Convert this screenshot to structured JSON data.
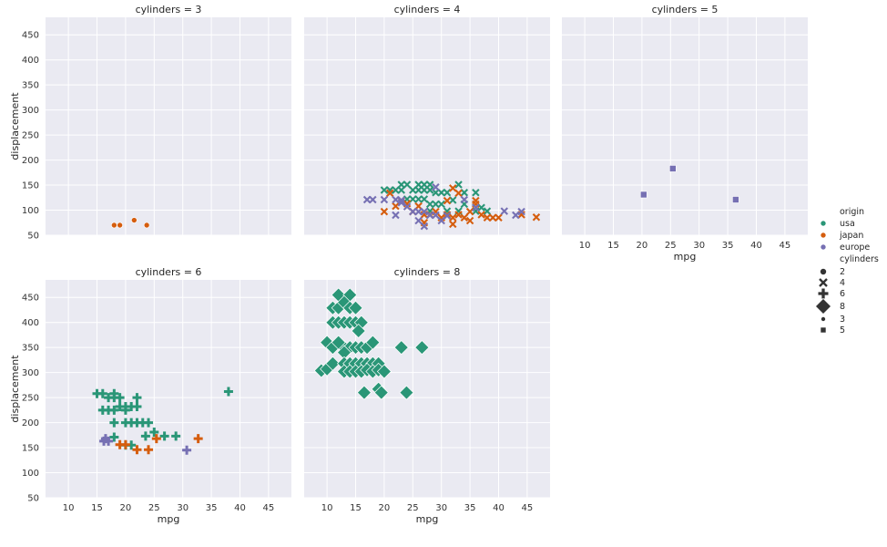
{
  "chart_data": {
    "type": "scatter",
    "facet_label_prefix": "cylinders = ",
    "xlabel": "mpg",
    "ylabel": "displacement",
    "xlim": [
      6,
      49
    ],
    "ylim": [
      50,
      485
    ],
    "xticks": [
      10,
      15,
      20,
      25,
      30,
      35,
      40,
      45
    ],
    "yticks": [
      50,
      100,
      150,
      200,
      250,
      300,
      350,
      400,
      450
    ],
    "grid": true,
    "legend_placement": "right",
    "colors": {
      "usa": "#2a9677",
      "japan": "#d55d0e",
      "europe": "#7670b3"
    },
    "legend": {
      "hue_title": "origin",
      "hue_entries": [
        "usa",
        "japan",
        "europe"
      ],
      "size_style_title": "cylinders",
      "size_style_entries": [
        {
          "label": "2",
          "marker": "circle",
          "size": 7
        },
        {
          "label": "4",
          "marker": "x",
          "size": 8
        },
        {
          "label": "6",
          "marker": "plus",
          "size": 11
        },
        {
          "label": "8",
          "marker": "diamond",
          "size": 17
        },
        {
          "label": "3",
          "marker": "circle",
          "size": 5
        },
        {
          "label": "5",
          "marker": "square",
          "size": 6
        }
      ]
    },
    "panels": [
      {
        "cylinders": "3",
        "marker": "circle",
        "size": 6,
        "show_xaxis": false,
        "points": [
          {
            "origin": "japan",
            "x": 18.0,
            "y": 70
          },
          {
            "origin": "japan",
            "x": 19.0,
            "y": 70
          },
          {
            "origin": "japan",
            "x": 21.5,
            "y": 80
          },
          {
            "origin": "japan",
            "x": 23.7,
            "y": 70
          }
        ]
      },
      {
        "cylinders": "4",
        "marker": "x",
        "size": 7,
        "show_xaxis": false,
        "points": [
          {
            "origin": "usa",
            "x": 20,
            "y": 140
          },
          {
            "origin": "usa",
            "x": 21,
            "y": 140
          },
          {
            "origin": "usa",
            "x": 22,
            "y": 140
          },
          {
            "origin": "usa",
            "x": 23,
            "y": 140
          },
          {
            "origin": "usa",
            "x": 23,
            "y": 151
          },
          {
            "origin": "usa",
            "x": 24,
            "y": 151
          },
          {
            "origin": "usa",
            "x": 25,
            "y": 140
          },
          {
            "origin": "usa",
            "x": 26,
            "y": 151
          },
          {
            "origin": "usa",
            "x": 27,
            "y": 151
          },
          {
            "origin": "usa",
            "x": 28,
            "y": 151
          },
          {
            "origin": "usa",
            "x": 26,
            "y": 140
          },
          {
            "origin": "usa",
            "x": 27,
            "y": 140
          },
          {
            "origin": "usa",
            "x": 28,
            "y": 140
          },
          {
            "origin": "usa",
            "x": 29,
            "y": 135
          },
          {
            "origin": "usa",
            "x": 30,
            "y": 135
          },
          {
            "origin": "usa",
            "x": 31,
            "y": 135
          },
          {
            "origin": "usa",
            "x": 33,
            "y": 151
          },
          {
            "origin": "usa",
            "x": 34,
            "y": 135
          },
          {
            "origin": "usa",
            "x": 36,
            "y": 135
          },
          {
            "origin": "usa",
            "x": 32,
            "y": 120
          },
          {
            "origin": "usa",
            "x": 34,
            "y": 112
          },
          {
            "origin": "usa",
            "x": 36,
            "y": 105
          },
          {
            "origin": "usa",
            "x": 37,
            "y": 105
          },
          {
            "origin": "usa",
            "x": 38,
            "y": 98
          },
          {
            "origin": "usa",
            "x": 26,
            "y": 122
          },
          {
            "origin": "usa",
            "x": 27,
            "y": 122
          },
          {
            "origin": "usa",
            "x": 28,
            "y": 112
          },
          {
            "origin": "usa",
            "x": 29,
            "y": 112
          },
          {
            "origin": "usa",
            "x": 30,
            "y": 112
          },
          {
            "origin": "usa",
            "x": 24,
            "y": 122
          },
          {
            "origin": "usa",
            "x": 25,
            "y": 122
          },
          {
            "origin": "usa",
            "x": 31,
            "y": 98
          },
          {
            "origin": "usa",
            "x": 33,
            "y": 98
          },
          {
            "origin": "usa",
            "x": 36,
            "y": 98
          },
          {
            "origin": "usa",
            "x": 28,
            "y": 98
          },
          {
            "origin": "japan",
            "x": 20,
            "y": 97
          },
          {
            "origin": "japan",
            "x": 21,
            "y": 134
          },
          {
            "origin": "japan",
            "x": 22,
            "y": 108
          },
          {
            "origin": "japan",
            "x": 23,
            "y": 119
          },
          {
            "origin": "japan",
            "x": 24,
            "y": 113
          },
          {
            "origin": "japan",
            "x": 25,
            "y": 97
          },
          {
            "origin": "japan",
            "x": 26,
            "y": 108
          },
          {
            "origin": "japan",
            "x": 27,
            "y": 91
          },
          {
            "origin": "japan",
            "x": 28,
            "y": 91
          },
          {
            "origin": "japan",
            "x": 29,
            "y": 97
          },
          {
            "origin": "japan",
            "x": 30,
            "y": 85
          },
          {
            "origin": "japan",
            "x": 31,
            "y": 91
          },
          {
            "origin": "japan",
            "x": 32,
            "y": 85
          },
          {
            "origin": "japan",
            "x": 32,
            "y": 144
          },
          {
            "origin": "japan",
            "x": 33,
            "y": 91
          },
          {
            "origin": "japan",
            "x": 34,
            "y": 85
          },
          {
            "origin": "japan",
            "x": 35,
            "y": 97
          },
          {
            "origin": "japan",
            "x": 36,
            "y": 119
          },
          {
            "origin": "japan",
            "x": 37,
            "y": 91
          },
          {
            "origin": "japan",
            "x": 38,
            "y": 85
          },
          {
            "origin": "japan",
            "x": 39,
            "y": 85
          },
          {
            "origin": "japan",
            "x": 40,
            "y": 85
          },
          {
            "origin": "japan",
            "x": 44,
            "y": 91
          },
          {
            "origin": "japan",
            "x": 46.6,
            "y": 86
          },
          {
            "origin": "japan",
            "x": 27,
            "y": 75
          },
          {
            "origin": "japan",
            "x": 32,
            "y": 72
          },
          {
            "origin": "japan",
            "x": 35,
            "y": 79
          },
          {
            "origin": "japan",
            "x": 31,
            "y": 119
          },
          {
            "origin": "japan",
            "x": 33,
            "y": 134
          },
          {
            "origin": "japan",
            "x": 36,
            "y": 112
          },
          {
            "origin": "europe",
            "x": 17,
            "y": 121
          },
          {
            "origin": "europe",
            "x": 18,
            "y": 121
          },
          {
            "origin": "europe",
            "x": 20,
            "y": 121
          },
          {
            "origin": "europe",
            "x": 22,
            "y": 121
          },
          {
            "origin": "europe",
            "x": 23,
            "y": 120
          },
          {
            "origin": "europe",
            "x": 24,
            "y": 107
          },
          {
            "origin": "europe",
            "x": 25,
            "y": 97
          },
          {
            "origin": "europe",
            "x": 26,
            "y": 97
          },
          {
            "origin": "europe",
            "x": 27,
            "y": 97
          },
          {
            "origin": "europe",
            "x": 28,
            "y": 90
          },
          {
            "origin": "europe",
            "x": 29,
            "y": 90
          },
          {
            "origin": "europe",
            "x": 30,
            "y": 79
          },
          {
            "origin": "europe",
            "x": 31,
            "y": 89
          },
          {
            "origin": "europe",
            "x": 34,
            "y": 121
          },
          {
            "origin": "europe",
            "x": 36,
            "y": 105
          },
          {
            "origin": "europe",
            "x": 41,
            "y": 98
          },
          {
            "origin": "europe",
            "x": 43,
            "y": 90
          },
          {
            "origin": "europe",
            "x": 44,
            "y": 97
          },
          {
            "origin": "europe",
            "x": 26,
            "y": 79
          },
          {
            "origin": "europe",
            "x": 27,
            "y": 68
          },
          {
            "origin": "europe",
            "x": 29,
            "y": 146
          },
          {
            "origin": "europe",
            "x": 22,
            "y": 90
          },
          {
            "origin": "europe",
            "x": 23,
            "y": 115
          }
        ]
      },
      {
        "cylinders": "5",
        "marker": "square",
        "size": 7,
        "show_xaxis": true,
        "points": [
          {
            "origin": "europe",
            "x": 20.3,
            "y": 131
          },
          {
            "origin": "europe",
            "x": 25.4,
            "y": 183
          },
          {
            "origin": "europe",
            "x": 36.4,
            "y": 121
          }
        ]
      },
      {
        "cylinders": "6",
        "marker": "plus",
        "size": 10,
        "show_xaxis": true,
        "points": [
          {
            "origin": "usa",
            "x": 15,
            "y": 258
          },
          {
            "origin": "usa",
            "x": 16,
            "y": 258
          },
          {
            "origin": "usa",
            "x": 17,
            "y": 250
          },
          {
            "origin": "usa",
            "x": 18,
            "y": 250
          },
          {
            "origin": "usa",
            "x": 18,
            "y": 258
          },
          {
            "origin": "usa",
            "x": 19,
            "y": 250
          },
          {
            "origin": "usa",
            "x": 16,
            "y": 225
          },
          {
            "origin": "usa",
            "x": 17,
            "y": 225
          },
          {
            "origin": "usa",
            "x": 18,
            "y": 225
          },
          {
            "origin": "usa",
            "x": 19,
            "y": 232
          },
          {
            "origin": "usa",
            "x": 20,
            "y": 232
          },
          {
            "origin": "usa",
            "x": 21,
            "y": 232
          },
          {
            "origin": "usa",
            "x": 20,
            "y": 225
          },
          {
            "origin": "usa",
            "x": 22,
            "y": 232
          },
          {
            "origin": "usa",
            "x": 22,
            "y": 250
          },
          {
            "origin": "usa",
            "x": 18,
            "y": 200
          },
          {
            "origin": "usa",
            "x": 20,
            "y": 200
          },
          {
            "origin": "usa",
            "x": 21,
            "y": 200
          },
          {
            "origin": "usa",
            "x": 22,
            "y": 200
          },
          {
            "origin": "usa",
            "x": 23,
            "y": 200
          },
          {
            "origin": "usa",
            "x": 24,
            "y": 200
          },
          {
            "origin": "usa",
            "x": 18,
            "y": 171
          },
          {
            "origin": "usa",
            "x": 20,
            "y": 155
          },
          {
            "origin": "usa",
            "x": 21,
            "y": 155
          },
          {
            "origin": "usa",
            "x": 23.5,
            "y": 173
          },
          {
            "origin": "usa",
            "x": 25,
            "y": 181
          },
          {
            "origin": "usa",
            "x": 26.8,
            "y": 173
          },
          {
            "origin": "usa",
            "x": 28.8,
            "y": 173
          },
          {
            "origin": "usa",
            "x": 38,
            "y": 262
          },
          {
            "origin": "japan",
            "x": 19,
            "y": 156
          },
          {
            "origin": "japan",
            "x": 20,
            "y": 156
          },
          {
            "origin": "japan",
            "x": 22,
            "y": 146
          },
          {
            "origin": "japan",
            "x": 24,
            "y": 146
          },
          {
            "origin": "japan",
            "x": 25.4,
            "y": 168
          },
          {
            "origin": "japan",
            "x": 32.7,
            "y": 168
          },
          {
            "origin": "europe",
            "x": 16.2,
            "y": 163
          },
          {
            "origin": "europe",
            "x": 16.5,
            "y": 168
          },
          {
            "origin": "europe",
            "x": 17,
            "y": 163
          },
          {
            "origin": "europe",
            "x": 30.7,
            "y": 145
          }
        ]
      },
      {
        "cylinders": "8",
        "marker": "diamond",
        "size": 15,
        "show_xaxis": true,
        "points": [
          {
            "origin": "usa",
            "x": 12,
            "y": 455
          },
          {
            "origin": "usa",
            "x": 14,
            "y": 455
          },
          {
            "origin": "usa",
            "x": 11,
            "y": 429
          },
          {
            "origin": "usa",
            "x": 12,
            "y": 429
          },
          {
            "origin": "usa",
            "x": 13,
            "y": 440
          },
          {
            "origin": "usa",
            "x": 14,
            "y": 429
          },
          {
            "origin": "usa",
            "x": 15,
            "y": 429
          },
          {
            "origin": "usa",
            "x": 11,
            "y": 400
          },
          {
            "origin": "usa",
            "x": 12,
            "y": 400
          },
          {
            "origin": "usa",
            "x": 13,
            "y": 400
          },
          {
            "origin": "usa",
            "x": 14,
            "y": 400
          },
          {
            "origin": "usa",
            "x": 15,
            "y": 400
          },
          {
            "origin": "usa",
            "x": 16,
            "y": 400
          },
          {
            "origin": "usa",
            "x": 15.5,
            "y": 383
          },
          {
            "origin": "usa",
            "x": 10,
            "y": 360
          },
          {
            "origin": "usa",
            "x": 11,
            "y": 350
          },
          {
            "origin": "usa",
            "x": 13,
            "y": 350
          },
          {
            "origin": "usa",
            "x": 14,
            "y": 350
          },
          {
            "origin": "usa",
            "x": 15,
            "y": 350
          },
          {
            "origin": "usa",
            "x": 16,
            "y": 350
          },
          {
            "origin": "usa",
            "x": 17,
            "y": 350
          },
          {
            "origin": "usa",
            "x": 18,
            "y": 360
          },
          {
            "origin": "usa",
            "x": 12,
            "y": 360
          },
          {
            "origin": "usa",
            "x": 13,
            "y": 340
          },
          {
            "origin": "usa",
            "x": 23,
            "y": 350
          },
          {
            "origin": "usa",
            "x": 26.6,
            "y": 350
          },
          {
            "origin": "usa",
            "x": 9,
            "y": 304
          },
          {
            "origin": "usa",
            "x": 10,
            "y": 307
          },
          {
            "origin": "usa",
            "x": 11,
            "y": 318
          },
          {
            "origin": "usa",
            "x": 13,
            "y": 318
          },
          {
            "origin": "usa",
            "x": 14,
            "y": 318
          },
          {
            "origin": "usa",
            "x": 15,
            "y": 318
          },
          {
            "origin": "usa",
            "x": 16,
            "y": 318
          },
          {
            "origin": "usa",
            "x": 17,
            "y": 318
          },
          {
            "origin": "usa",
            "x": 18,
            "y": 318
          },
          {
            "origin": "usa",
            "x": 19,
            "y": 318
          },
          {
            "origin": "usa",
            "x": 13,
            "y": 302
          },
          {
            "origin": "usa",
            "x": 14,
            "y": 302
          },
          {
            "origin": "usa",
            "x": 15,
            "y": 302
          },
          {
            "origin": "usa",
            "x": 16,
            "y": 302
          },
          {
            "origin": "usa",
            "x": 17,
            "y": 305
          },
          {
            "origin": "usa",
            "x": 18,
            "y": 302
          },
          {
            "origin": "usa",
            "x": 19,
            "y": 305
          },
          {
            "origin": "usa",
            "x": 20,
            "y": 302
          },
          {
            "origin": "usa",
            "x": 16.5,
            "y": 260
          },
          {
            "origin": "usa",
            "x": 19,
            "y": 267
          },
          {
            "origin": "usa",
            "x": 19.5,
            "y": 260
          },
          {
            "origin": "usa",
            "x": 23.9,
            "y": 260
          }
        ]
      }
    ]
  }
}
